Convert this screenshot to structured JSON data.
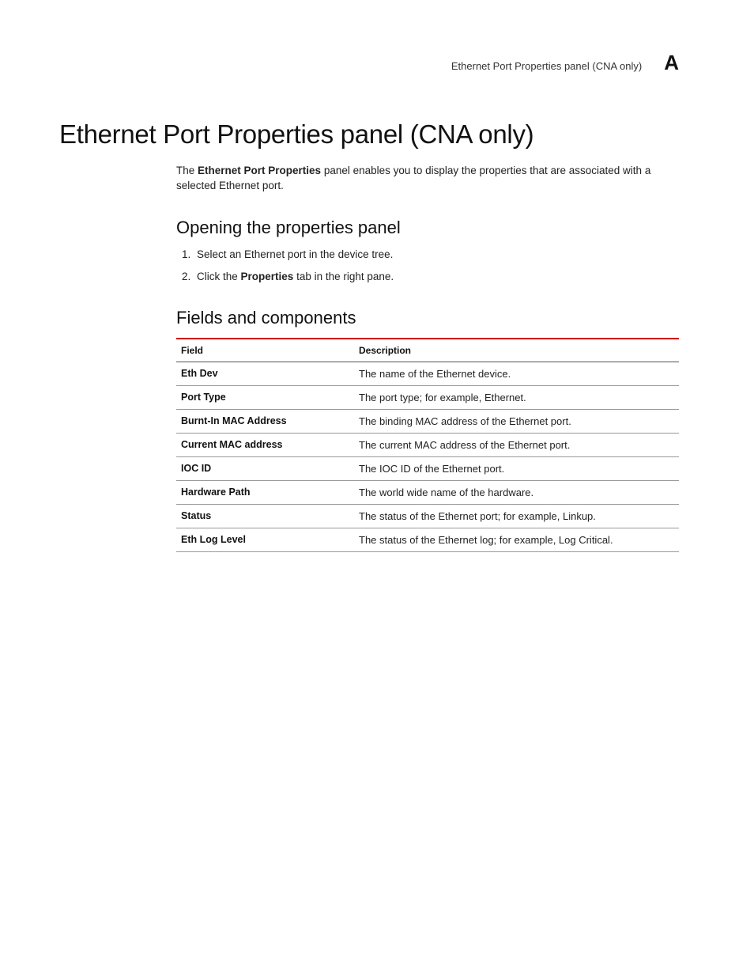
{
  "header": {
    "running_title": "Ethernet Port Properties panel (CNA only)",
    "appendix_letter": "A"
  },
  "title": "Ethernet Port Properties panel (CNA only)",
  "intro": {
    "prefix": "The ",
    "bold": "Ethernet Port Properties",
    "suffix": " panel enables you to display the properties that are associated with a selected Ethernet port."
  },
  "sections": {
    "opening": {
      "heading": "Opening the properties panel",
      "steps": [
        {
          "text": "Select an Ethernet port in the device tree."
        },
        {
          "prefix": "Click the ",
          "bold": "Properties",
          "suffix": " tab in the right pane."
        }
      ]
    },
    "fields": {
      "heading": "Fields and components",
      "columns": [
        "Field",
        "Description"
      ],
      "rows": [
        {
          "field": "Eth Dev",
          "desc": "The name of the Ethernet device."
        },
        {
          "field": "Port Type",
          "desc": "The port type; for example, Ethernet."
        },
        {
          "field": "Burnt-In MAC Address",
          "desc": "The binding MAC address of the Ethernet port."
        },
        {
          "field": "Current MAC address",
          "desc": "The current MAC address of the Ethernet port."
        },
        {
          "field": "IOC ID",
          "desc": "The IOC ID of the Ethernet port."
        },
        {
          "field": "Hardware Path",
          "desc": "The world wide name of the hardware."
        },
        {
          "field": "Status",
          "desc": "The status of the Ethernet port; for example, Linkup."
        },
        {
          "field": "Eth Log Level",
          "desc": "The status of the Ethernet log; for example, Log Critical."
        }
      ]
    }
  },
  "style": {
    "accent_color": "#cc0000",
    "text_color": "#222222",
    "border_color": "#999999",
    "background": "#ffffff",
    "font_body": "Arial",
    "font_headings": "Arial Narrow"
  }
}
